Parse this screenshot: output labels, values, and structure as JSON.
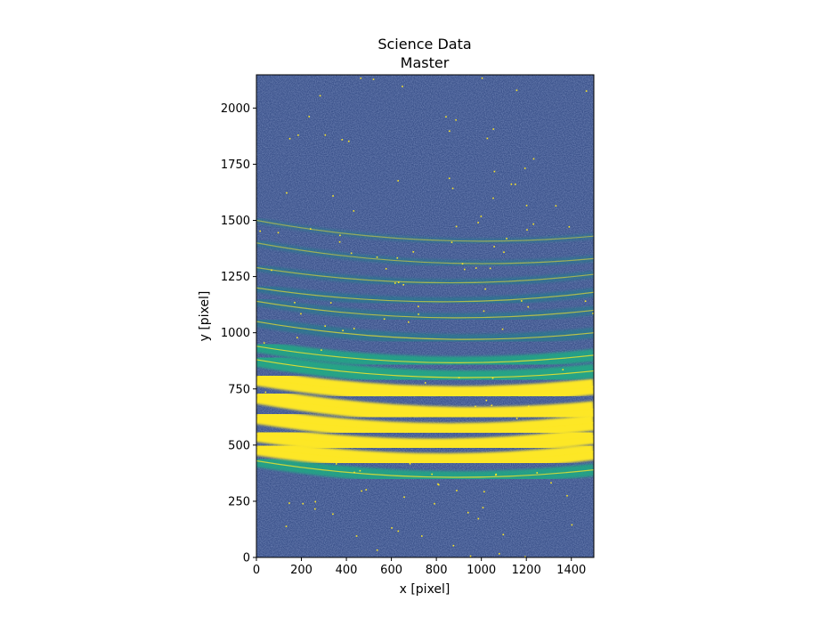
{
  "chart_data": {
    "type": "heatmap",
    "title": "Science Data\nMaster",
    "title_lines": [
      "Science Data",
      "Master"
    ],
    "xlabel": "x [pixel]",
    "ylabel": "y [pixel]",
    "xlim": [
      0,
      1500
    ],
    "ylim": [
      0,
      2148
    ],
    "x_ticks": [
      0,
      200,
      400,
      600,
      800,
      1000,
      1200,
      1400
    ],
    "x_tick_labels": [
      "0",
      "200",
      "400",
      "600",
      "800",
      "1000",
      "1200",
      "1400"
    ],
    "y_ticks": [
      0,
      250,
      500,
      750,
      1000,
      1250,
      1500,
      1750,
      2000
    ],
    "y_tick_labels": [
      "0",
      "250",
      "500",
      "750",
      "1000",
      "1250",
      "1500",
      "1750",
      "2000"
    ],
    "colormap": "viridis",
    "colors": {
      "background": "#3b528b",
      "noise_dark": "#3e4a89",
      "mid": "#2a788e",
      "bright": "#22a884",
      "saturated": "#fde725"
    },
    "grid": false,
    "orders": [
      {
        "y_center_left": 430,
        "y_center_right": 390,
        "intensity": 0.7
      },
      {
        "y_center_left": 490,
        "y_center_right": 470,
        "intensity": 1.0
      },
      {
        "y_center_left": 550,
        "y_center_right": 540,
        "intensity": 1.0
      },
      {
        "y_center_left": 630,
        "y_center_right": 600,
        "intensity": 1.0
      },
      {
        "y_center_left": 720,
        "y_center_right": 660,
        "intensity": 1.0
      },
      {
        "y_center_left": 800,
        "y_center_right": 760,
        "intensity": 1.0
      },
      {
        "y_center_left": 880,
        "y_center_right": 830,
        "intensity": 0.85
      },
      {
        "y_center_left": 940,
        "y_center_right": 900,
        "intensity": 0.7
      },
      {
        "y_center_left": 1050,
        "y_center_right": 1000,
        "intensity": 0.55
      },
      {
        "y_center_left": 1140,
        "y_center_right": 1100,
        "intensity": 0.45
      },
      {
        "y_center_left": 1200,
        "y_center_right": 1180,
        "intensity": 0.4
      },
      {
        "y_center_left": 1290,
        "y_center_right": 1260,
        "intensity": 0.3
      },
      {
        "y_center_left": 1400,
        "y_center_right": 1330,
        "intensity": 0.25
      },
      {
        "y_center_left": 1500,
        "y_center_right": 1430,
        "intensity": 0.15
      }
    ]
  }
}
